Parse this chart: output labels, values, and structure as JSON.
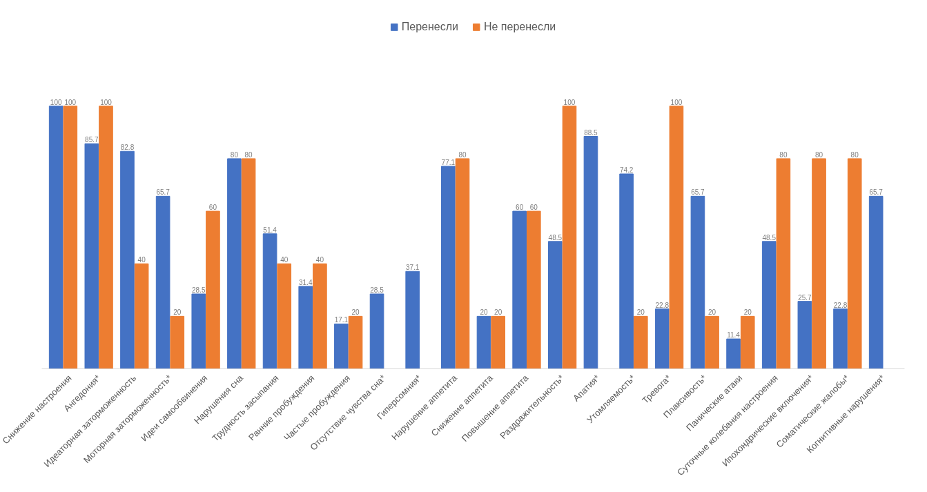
{
  "chart_data": {
    "type": "bar",
    "categories": [
      "Снижение настроения",
      "Ангедония*",
      "Идеаторная заторможенность",
      "Моторная заторможенность*",
      "Идеи самообвинения",
      "Нарушения сна",
      "Трудность засыпания",
      "Ранние пробуждения",
      "Частые пробуждения",
      "Отсутствие чувства сна*",
      "Гиперсомния*",
      "Нарушение аппетита",
      "Снижение аппетита",
      "Повышение аппетита",
      "Раздражительность*",
      "Апатия*",
      "Утомляемость*",
      "Тревога*",
      "Плаксивость*",
      "Панические атаки",
      "Суточные колебания настроения",
      "Ипохондрические включения*",
      "Соматические жалобы*",
      "Когнитивные нарушения*"
    ],
    "series": [
      {
        "name": "Перенесли",
        "color": "#4472c4",
        "values": [
          100,
          85.7,
          82.8,
          65.7,
          28.5,
          80,
          51.4,
          31.4,
          17.1,
          28.5,
          37.1,
          77.1,
          20,
          60,
          48.5,
          88.5,
          74.2,
          22.8,
          65.7,
          11.4,
          48.5,
          25.7,
          22.8,
          65.7
        ]
      },
      {
        "name": "Не перенесли",
        "color": "#ed7d31",
        "values": [
          100,
          100,
          40,
          20,
          60,
          80,
          40,
          40,
          20,
          null,
          null,
          80,
          20,
          60,
          100,
          null,
          20,
          100,
          20,
          20,
          80,
          80,
          80,
          null
        ]
      }
    ],
    "data_labels": true,
    "legend": "top",
    "grid": false,
    "tick_labels": "x"
  }
}
